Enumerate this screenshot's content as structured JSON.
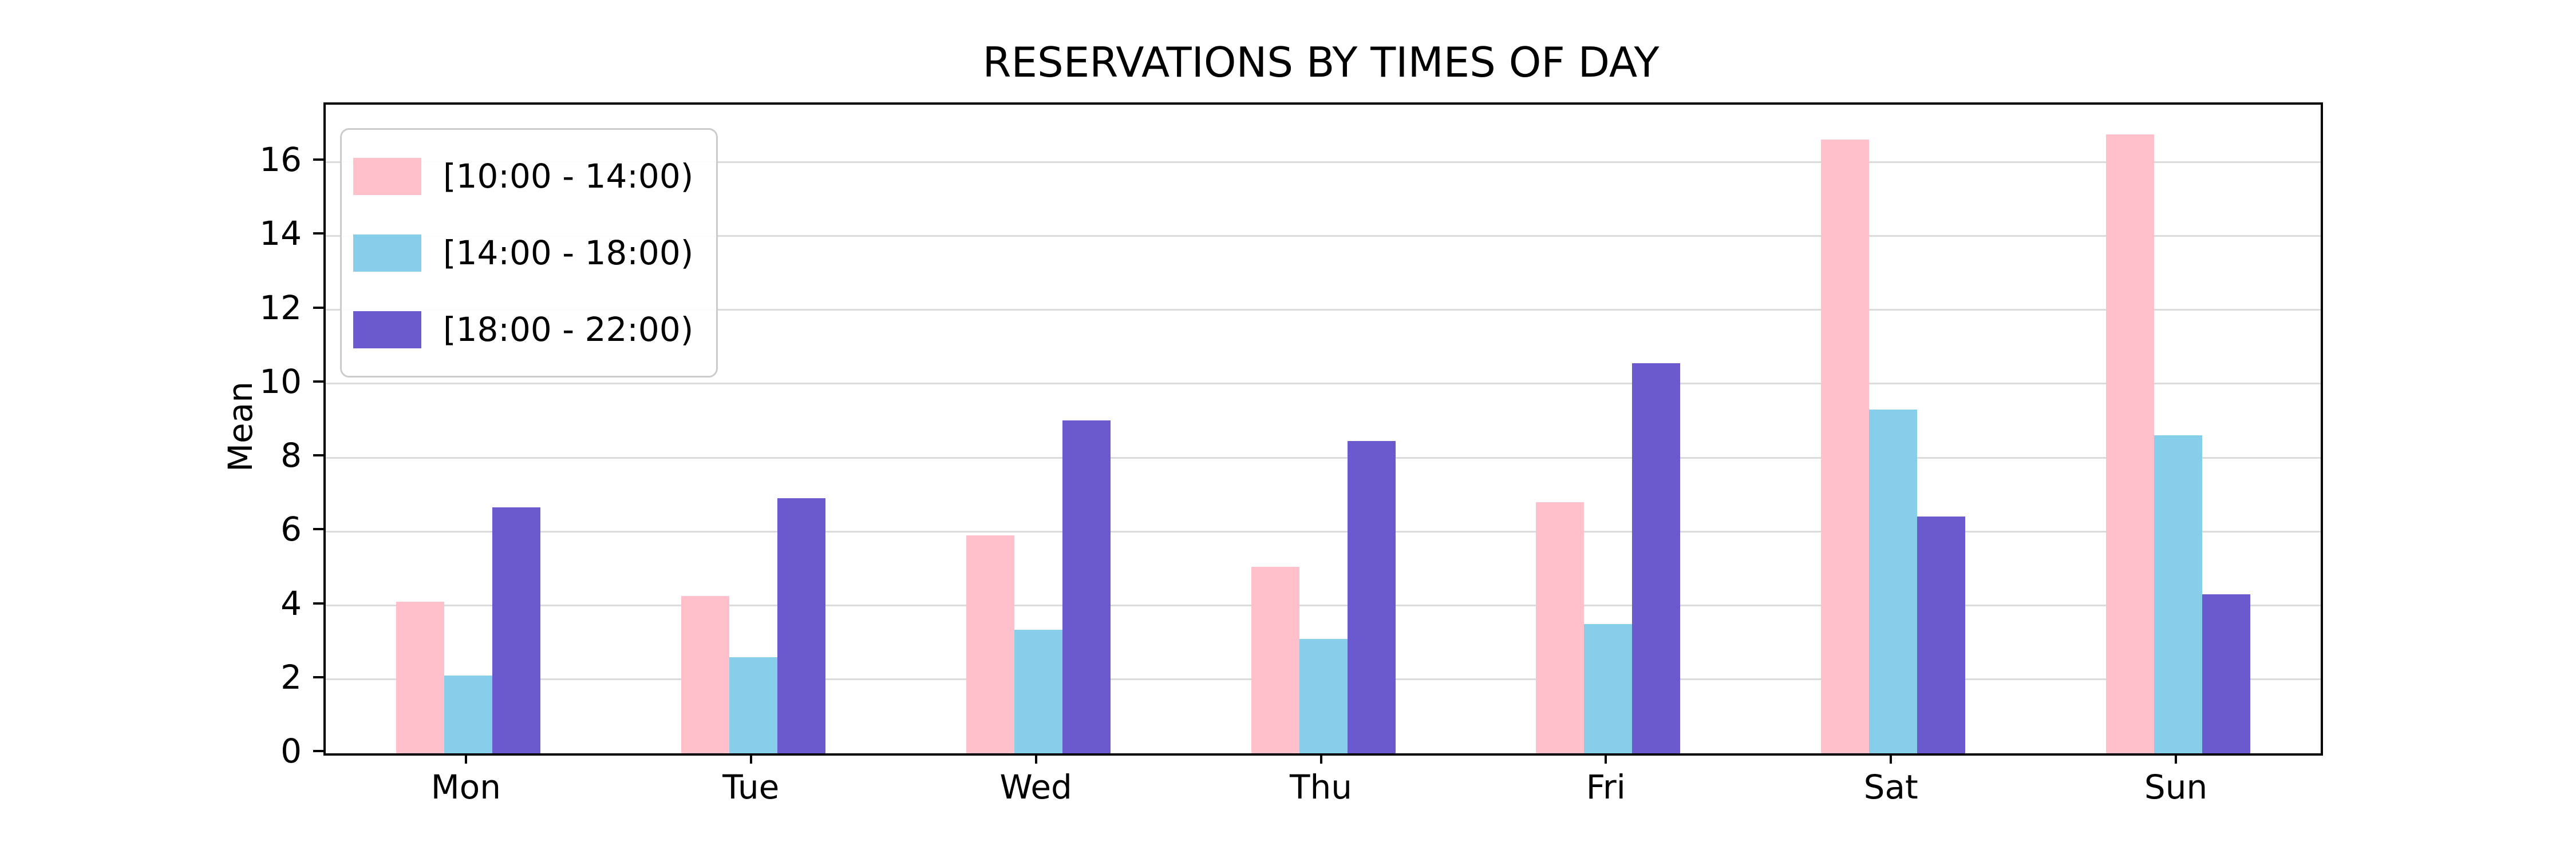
{
  "title": "RESERVATIONS BY TIMES OF DAY",
  "chart_data": {
    "type": "bar",
    "title": "RESERVATIONS BY TIMES OF DAY",
    "xlabel": "",
    "ylabel": "Mean",
    "categories": [
      "Mon",
      "Tue",
      "Wed",
      "Thu",
      "Fri",
      "Sat",
      "Sun"
    ],
    "series": [
      {
        "name": "[10:00 - 14:00)",
        "color": "#FFC0CB",
        "values": [
          4.1,
          4.25,
          5.9,
          5.05,
          6.8,
          16.6,
          16.75
        ]
      },
      {
        "name": "[14:00 - 18:00)",
        "color": "#87CEEB",
        "values": [
          2.1,
          2.6,
          3.35,
          3.1,
          3.5,
          9.3,
          8.6
        ]
      },
      {
        "name": "[18:00 - 22:00)",
        "color": "#6A5ACD",
        "values": [
          6.65,
          6.9,
          9.0,
          8.45,
          10.55,
          6.4,
          4.3
        ]
      }
    ],
    "yticks": [
      0,
      2,
      4,
      6,
      8,
      10,
      12,
      14,
      16
    ],
    "ylim": [
      0,
      17.55
    ],
    "grid": "horizontal",
    "grid_color": "#dbdbdb",
    "legend_position": "upper left",
    "spine_color": "#000000",
    "background_color": "#ffffff"
  }
}
